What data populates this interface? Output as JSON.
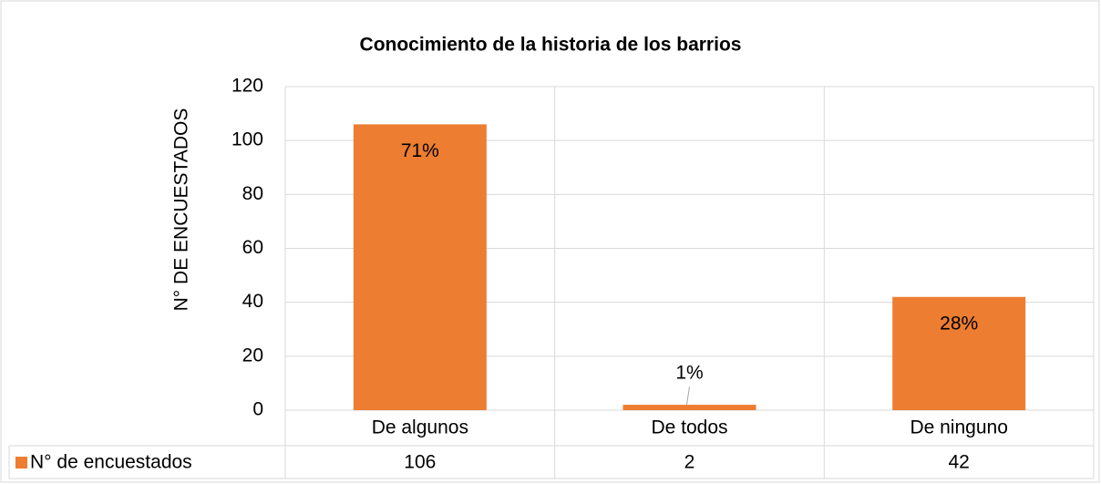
{
  "chart_data": {
    "type": "bar",
    "title": "Conocimiento de la historia de los barrios",
    "y_label": "N° DE ENCUESTADOS",
    "categories": [
      "De algunos",
      "De todos",
      "De ninguno"
    ],
    "series": [
      {
        "name": "N° de encuestados",
        "color": "#ed7d31",
        "values": [
          106,
          2,
          42
        ],
        "data_labels": [
          "71%",
          "1%",
          "28%"
        ]
      }
    ],
    "ylim": [
      0,
      120
    ],
    "yticks": [
      0,
      20,
      40,
      60,
      80,
      100,
      120
    ],
    "grid": true,
    "data_table": true
  }
}
